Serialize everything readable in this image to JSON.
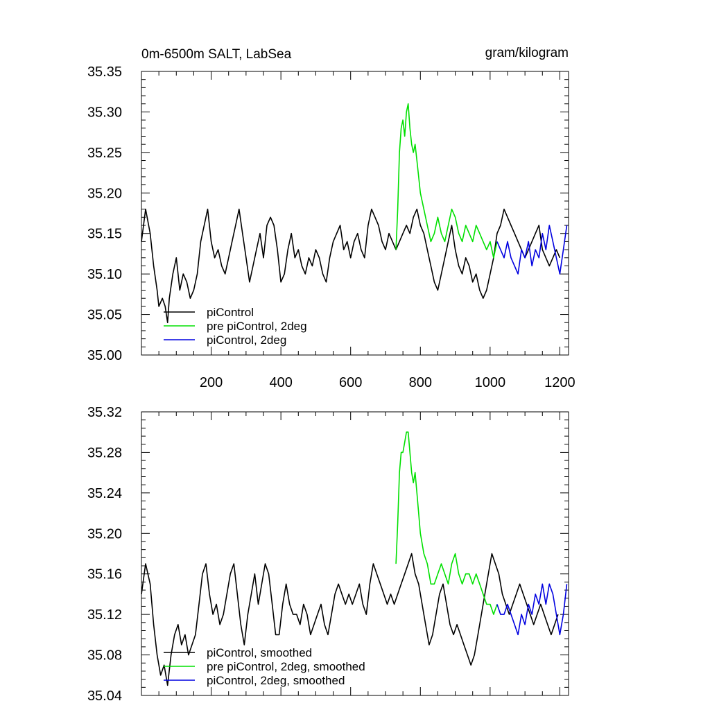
{
  "chart_data": [
    {
      "type": "line",
      "title_left": "0m-6500m SALT, LabSea",
      "title_right": "gram/kilogram",
      "xlim": [
        0,
        1225
      ],
      "ylim": [
        35.0,
        35.35
      ],
      "x_ticks": [
        200,
        400,
        600,
        800,
        1000,
        1200
      ],
      "x_tick_labels": [
        "200",
        "400",
        "600",
        "800",
        "1000",
        "1200"
      ],
      "y_ticks": [
        35.0,
        35.05,
        35.1,
        35.15,
        35.2,
        35.25,
        35.3,
        35.35
      ],
      "y_tick_labels": [
        "35.00",
        "35.05",
        "35.10",
        "35.15",
        "35.20",
        "35.25",
        "35.30",
        "35.35"
      ],
      "legend_position": "bottom-left",
      "series": [
        {
          "name": "piControl",
          "color": "#000000",
          "x": [
            0,
            12,
            25,
            35,
            45,
            50,
            60,
            68,
            75,
            80,
            90,
            100,
            110,
            120,
            130,
            140,
            150,
            160,
            170,
            180,
            190,
            200,
            210,
            220,
            230,
            240,
            250,
            260,
            270,
            280,
            290,
            300,
            310,
            320,
            330,
            340,
            350,
            360,
            370,
            380,
            390,
            400,
            410,
            420,
            430,
            440,
            450,
            460,
            470,
            480,
            490,
            500,
            510,
            520,
            530,
            540,
            550,
            560,
            570,
            580,
            590,
            600,
            610,
            620,
            630,
            640,
            650,
            660,
            670,
            680,
            690,
            700,
            710,
            720,
            730,
            740,
            750,
            760,
            770,
            780,
            790,
            800,
            810,
            820,
            830,
            840,
            850,
            860,
            870,
            880,
            890,
            900,
            910,
            920,
            930,
            940,
            950,
            960,
            970,
            980,
            990,
            1000,
            1010,
            1020,
            1030,
            1040,
            1050,
            1060,
            1070,
            1080,
            1090,
            1100,
            1110,
            1120,
            1130,
            1140,
            1150,
            1160,
            1170,
            1180,
            1190,
            1200
          ],
          "y": [
            35.14,
            35.18,
            35.15,
            35.11,
            35.08,
            35.06,
            35.07,
            35.06,
            35.04,
            35.07,
            35.1,
            35.12,
            35.08,
            35.1,
            35.09,
            35.07,
            35.08,
            35.1,
            35.14,
            35.16,
            35.18,
            35.14,
            35.12,
            35.13,
            35.11,
            35.1,
            35.12,
            35.14,
            35.16,
            35.18,
            35.15,
            35.12,
            35.09,
            35.11,
            35.13,
            35.15,
            35.12,
            35.16,
            35.17,
            35.16,
            35.13,
            35.09,
            35.1,
            35.13,
            35.15,
            35.12,
            35.13,
            35.11,
            35.1,
            35.12,
            35.11,
            35.13,
            35.12,
            35.1,
            35.09,
            35.12,
            35.14,
            35.15,
            35.16,
            35.13,
            35.14,
            35.12,
            35.14,
            35.15,
            35.13,
            35.12,
            35.16,
            35.18,
            35.17,
            35.16,
            35.14,
            35.13,
            35.15,
            35.14,
            35.13,
            35.14,
            35.15,
            35.16,
            35.15,
            35.17,
            35.18,
            35.16,
            35.15,
            35.13,
            35.11,
            35.09,
            35.08,
            35.1,
            35.12,
            35.14,
            35.16,
            35.13,
            35.11,
            35.1,
            35.12,
            35.11,
            35.09,
            35.1,
            35.08,
            35.07,
            35.08,
            35.1,
            35.12,
            35.15,
            35.16,
            35.18,
            35.17,
            35.16,
            35.15,
            35.14,
            35.13,
            35.12,
            35.13,
            35.14,
            35.15,
            35.16,
            35.13,
            35.12,
            35.11,
            35.12,
            35.13,
            35.12
          ]
        },
        {
          "name": "pre piControl, 2deg",
          "color": "#00e000",
          "x": [
            730,
            735,
            740,
            745,
            750,
            755,
            760,
            765,
            770,
            775,
            780,
            785,
            790,
            795,
            800,
            810,
            820,
            830,
            840,
            850,
            860,
            870,
            880,
            890,
            900,
            910,
            920,
            930,
            940,
            950,
            960,
            970,
            980,
            990,
            1000,
            1010,
            1020
          ],
          "y": [
            35.13,
            35.18,
            35.25,
            35.28,
            35.29,
            35.27,
            35.3,
            35.31,
            35.28,
            35.26,
            35.25,
            35.26,
            35.24,
            35.22,
            35.2,
            35.18,
            35.16,
            35.14,
            35.15,
            35.17,
            35.15,
            35.14,
            35.16,
            35.18,
            35.17,
            35.15,
            35.14,
            35.16,
            35.15,
            35.14,
            35.16,
            35.15,
            35.14,
            35.13,
            35.14,
            35.12,
            35.14
          ]
        },
        {
          "name": "piControl, 2deg",
          "color": "#0000e0",
          "x": [
            1020,
            1030,
            1040,
            1050,
            1060,
            1070,
            1080,
            1090,
            1100,
            1110,
            1120,
            1130,
            1140,
            1150,
            1160,
            1170,
            1180,
            1190,
            1200,
            1210,
            1220
          ],
          "y": [
            35.14,
            35.13,
            35.12,
            35.14,
            35.12,
            35.11,
            35.1,
            35.13,
            35.12,
            35.14,
            35.11,
            35.13,
            35.12,
            35.15,
            35.13,
            35.16,
            35.14,
            35.12,
            35.1,
            35.13,
            35.16
          ]
        }
      ]
    },
    {
      "type": "line",
      "xlim": [
        0,
        1225
      ],
      "ylim": [
        35.04,
        35.32
      ],
      "x_ticks": [
        200,
        400,
        600,
        800,
        1000,
        1200
      ],
      "y_ticks": [
        35.04,
        35.08,
        35.12,
        35.16,
        35.2,
        35.24,
        35.28,
        35.32
      ],
      "y_tick_labels": [
        "35.04",
        "35.08",
        "35.12",
        "35.16",
        "35.20",
        "35.24",
        "35.28",
        "35.32"
      ],
      "legend_position": "bottom-left",
      "series": [
        {
          "name": "piControl, smoothed",
          "color": "#000000",
          "x": [
            0,
            12,
            25,
            35,
            45,
            55,
            65,
            75,
            85,
            95,
            105,
            115,
            125,
            135,
            145,
            155,
            165,
            175,
            185,
            195,
            205,
            215,
            225,
            235,
            245,
            255,
            265,
            275,
            285,
            295,
            305,
            315,
            325,
            335,
            345,
            355,
            365,
            375,
            385,
            395,
            405,
            415,
            425,
            435,
            445,
            455,
            465,
            475,
            485,
            495,
            505,
            515,
            525,
            535,
            545,
            555,
            565,
            575,
            585,
            595,
            605,
            615,
            625,
            635,
            645,
            655,
            665,
            675,
            685,
            695,
            705,
            715,
            725,
            735,
            745,
            755,
            765,
            775,
            785,
            795,
            805,
            815,
            825,
            835,
            845,
            855,
            865,
            875,
            885,
            895,
            905,
            915,
            925,
            935,
            945,
            955,
            965,
            975,
            985,
            995,
            1005,
            1015,
            1025,
            1035,
            1045,
            1055,
            1065,
            1075,
            1085,
            1095,
            1105,
            1115,
            1125,
            1135,
            1145,
            1155,
            1165,
            1175,
            1185,
            1195
          ],
          "y": [
            35.14,
            35.17,
            35.15,
            35.11,
            35.08,
            35.06,
            35.07,
            35.05,
            35.08,
            35.1,
            35.11,
            35.09,
            35.1,
            35.08,
            35.09,
            35.1,
            35.13,
            35.16,
            35.17,
            35.14,
            35.12,
            35.13,
            35.11,
            35.12,
            35.14,
            35.16,
            35.17,
            35.14,
            35.11,
            35.09,
            35.12,
            35.14,
            35.16,
            35.13,
            35.15,
            35.17,
            35.16,
            35.13,
            35.1,
            35.1,
            35.13,
            35.15,
            35.13,
            35.12,
            35.12,
            35.11,
            35.13,
            35.12,
            35.1,
            35.11,
            35.12,
            35.13,
            35.11,
            35.1,
            35.12,
            35.14,
            35.15,
            35.14,
            35.13,
            35.14,
            35.13,
            35.14,
            35.15,
            35.13,
            35.12,
            35.15,
            35.17,
            35.16,
            35.15,
            35.14,
            35.13,
            35.14,
            35.13,
            35.14,
            35.15,
            35.16,
            35.17,
            35.18,
            35.16,
            35.15,
            35.13,
            35.11,
            35.09,
            35.1,
            35.12,
            35.14,
            35.15,
            35.13,
            35.11,
            35.1,
            35.11,
            35.1,
            35.09,
            35.08,
            35.07,
            35.08,
            35.1,
            35.12,
            35.14,
            35.16,
            35.18,
            35.17,
            35.16,
            35.14,
            35.13,
            35.12,
            35.13,
            35.14,
            35.15,
            35.14,
            35.13,
            35.12,
            35.11,
            35.12,
            35.13,
            35.12,
            35.11,
            35.1,
            35.11,
            35.12
          ]
        },
        {
          "name": "pre piControl, 2deg, smoothed",
          "color": "#00e000",
          "x": [
            730,
            735,
            740,
            745,
            750,
            755,
            760,
            765,
            770,
            775,
            780,
            785,
            790,
            795,
            800,
            810,
            820,
            830,
            840,
            850,
            860,
            870,
            880,
            890,
            900,
            910,
            920,
            930,
            940,
            950,
            960,
            970,
            980,
            990,
            1000,
            1010,
            1020
          ],
          "y": [
            35.17,
            35.21,
            35.26,
            35.28,
            35.28,
            35.29,
            35.3,
            35.3,
            35.28,
            35.26,
            35.25,
            35.26,
            35.24,
            35.22,
            35.2,
            35.18,
            35.17,
            35.15,
            35.15,
            35.16,
            35.17,
            35.16,
            35.15,
            35.17,
            35.18,
            35.16,
            35.15,
            35.16,
            35.16,
            35.15,
            35.16,
            35.15,
            35.14,
            35.13,
            35.13,
            35.12,
            35.13
          ]
        },
        {
          "name": "piControl, 2deg, smoothed",
          "color": "#0000e0",
          "x": [
            1020,
            1030,
            1040,
            1050,
            1060,
            1070,
            1080,
            1090,
            1100,
            1110,
            1120,
            1130,
            1140,
            1150,
            1160,
            1170,
            1180,
            1190,
            1200,
            1210,
            1220
          ],
          "y": [
            35.13,
            35.12,
            35.12,
            35.13,
            35.12,
            35.11,
            35.1,
            35.12,
            35.11,
            35.13,
            35.12,
            35.14,
            35.13,
            35.15,
            35.13,
            35.15,
            35.14,
            35.12,
            35.1,
            35.12,
            35.15
          ]
        }
      ]
    }
  ]
}
